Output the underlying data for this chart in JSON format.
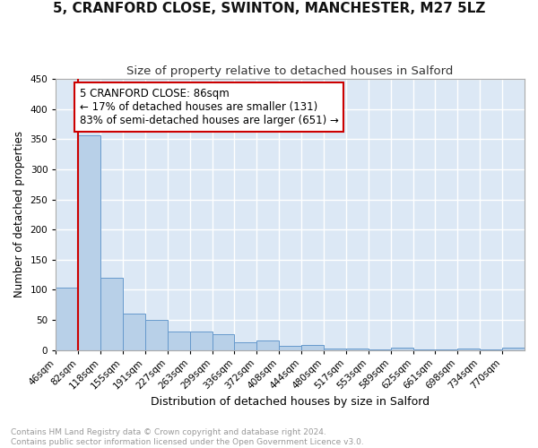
{
  "title": "5, CRANFORD CLOSE, SWINTON, MANCHESTER, M27 5LZ",
  "subtitle": "Size of property relative to detached houses in Salford",
  "xlabel": "Distribution of detached houses by size in Salford",
  "ylabel": "Number of detached properties",
  "categories": [
    "46sqm",
    "82sqm",
    "118sqm",
    "155sqm",
    "191sqm",
    "227sqm",
    "263sqm",
    "299sqm",
    "336sqm",
    "372sqm",
    "408sqm",
    "444sqm",
    "480sqm",
    "517sqm",
    "553sqm",
    "589sqm",
    "625sqm",
    "661sqm",
    "698sqm",
    "734sqm",
    "770sqm"
  ],
  "values": [
    103,
    356,
    120,
    61,
    50,
    31,
    30,
    26,
    12,
    15,
    7,
    8,
    3,
    2,
    1,
    4,
    1,
    1,
    3,
    1,
    4
  ],
  "bar_color": "#b8d0e8",
  "bar_edge_color": "#6699cc",
  "background_color": "#dce8f5",
  "grid_color": "#ffffff",
  "marker_line_color": "#cc0000",
  "annotation_box_edge": "#cc0000",
  "annotation_text": "5 CRANFORD CLOSE: 86sqm\n← 17% of detached houses are smaller (131)\n83% of semi-detached houses are larger (651) →",
  "annotation_fontsize": 8.5,
  "ylim": [
    0,
    450
  ],
  "footer_text": "Contains HM Land Registry data © Crown copyright and database right 2024.\nContains public sector information licensed under the Open Government Licence v3.0.",
  "title_fontsize": 11,
  "subtitle_fontsize": 9.5,
  "xlabel_fontsize": 9,
  "ylabel_fontsize": 8.5,
  "tick_fontsize": 7.5
}
